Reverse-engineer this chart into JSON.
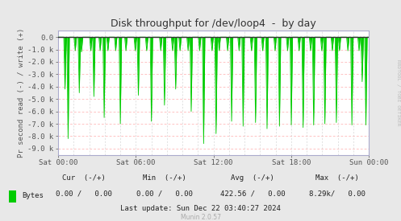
{
  "title": "Disk throughput for /dev/loop4  -  by day",
  "ylabel": "Pr second read (-) / write (+)",
  "bg_color": "#e8e8e8",
  "plot_bg_color": "#ffffff",
  "grid_color_h": "#ffaaaa",
  "grid_color_v": "#cccccc",
  "line_color": "#00cc00",
  "zero_line_color": "#333333",
  "ylim": [
    -9500,
    500
  ],
  "yticks": [
    0,
    -1000,
    -2000,
    -3000,
    -4000,
    -5000,
    -6000,
    -7000,
    -8000,
    -9000
  ],
  "ytick_labels": [
    "0.0",
    "-1.0 k",
    "-2.0 k",
    "-3.0 k",
    "-4.0 k",
    "-5.0 k",
    "-6.0 k",
    "-7.0 k",
    "-8.0 k",
    "-9.0 k"
  ],
  "xtick_positions": [
    0.0,
    0.25,
    0.5,
    0.75,
    1.0
  ],
  "xtick_labels": [
    "Sat 00:00",
    "Sat 06:00",
    "Sat 12:00",
    "Sat 18:00",
    "Sun 00:00"
  ],
  "legend_label": "Bytes",
  "legend_color": "#00cc00",
  "cur_label": "Cur  (-/+)",
  "min_label": "Min  (-/+)",
  "avg_label": "Avg  (-/+)",
  "max_label": "Max  (-/+)",
  "cur_val": "0.00 /   0.00",
  "min_val": "0.00 /   0.00",
  "avg_val": "422.56 /   0.00",
  "max_val": "8.29k/   0.00",
  "last_update": "Last update: Sun Dec 22 03:40:27 2024",
  "munin_version": "Munin 2.0.57",
  "rrdtool_label": "RRDTOOL / TOBI OETIKER",
  "title_color": "#333333",
  "axis_color": "#aaaacc",
  "tick_color": "#555555",
  "text_color": "#222222",
  "spike_x": [
    0.022,
    0.032,
    0.055,
    0.068,
    0.075,
    0.105,
    0.115,
    0.135,
    0.148,
    0.16,
    0.185,
    0.2,
    0.218,
    0.248,
    0.258,
    0.285,
    0.3,
    0.33,
    0.342,
    0.368,
    0.378,
    0.392,
    0.418,
    0.428,
    0.455,
    0.468,
    0.495,
    0.508,
    0.518,
    0.545,
    0.558,
    0.582,
    0.595,
    0.622,
    0.635,
    0.658,
    0.672,
    0.698,
    0.712,
    0.738,
    0.75,
    0.775,
    0.788,
    0.812,
    0.822,
    0.848,
    0.858,
    0.882,
    0.895,
    0.905,
    0.932,
    0.945,
    0.968,
    0.978,
    0.99
  ],
  "spike_y": [
    -4200,
    -8200,
    -1100,
    -4500,
    -1200,
    -1100,
    -4800,
    -1100,
    -6500,
    -1100,
    -1100,
    -7000,
    -1100,
    -1100,
    -4700,
    -1100,
    -6800,
    -1100,
    -5500,
    -1100,
    -4200,
    -1100,
    -1100,
    -6000,
    -1100,
    -8600,
    -1100,
    -7800,
    -1100,
    -1100,
    -6800,
    -1100,
    -7200,
    -1100,
    -6900,
    -1100,
    -7400,
    -1100,
    -7200,
    -1100,
    -7100,
    -1100,
    -7300,
    -1100,
    -7100,
    -1100,
    -7000,
    -1100,
    -6900,
    -1100,
    -1100,
    -7100,
    -1100,
    -3600,
    -7100
  ]
}
